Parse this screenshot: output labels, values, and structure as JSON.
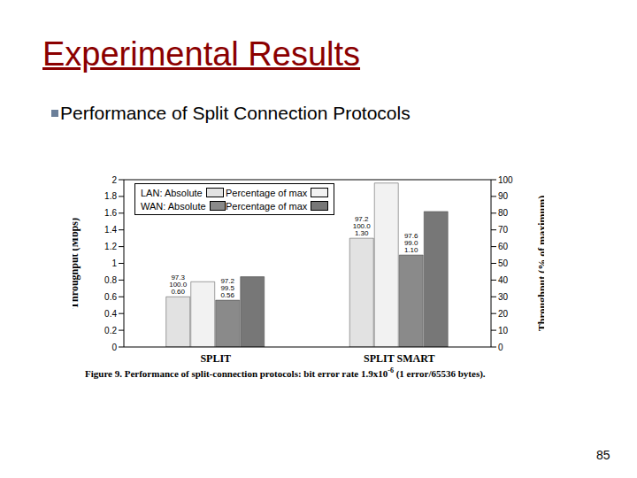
{
  "slide": {
    "title": "Experimental Results",
    "bullet": "Performance of Split Connection Protocols",
    "page_number": "85",
    "caption": {
      "text": "Figure 9. Performance of split-connection protocols: bit error rate",
      "value": "1.9x10",
      "exponent": "-6",
      "end": "(1 error/65536 bytes)."
    }
  },
  "chart_data": {
    "type": "bar",
    "categories": [
      "SPLIT",
      "SPLIT SMART"
    ],
    "y_label": "Throughput (Mbps)",
    "y2_label": "Throughput (% of maximum)",
    "ylim": [
      0,
      2
    ],
    "yticks": [
      0,
      0.2,
      0.4,
      0.6,
      0.8,
      1,
      1.2,
      1.4,
      1.6,
      1.8,
      2
    ],
    "y2lim": [
      0,
      100
    ],
    "y2ticks": [
      0,
      10,
      20,
      30,
      40,
      50,
      60,
      70,
      80,
      90,
      100
    ],
    "legend": "upper left",
    "grid": false,
    "series": [
      {
        "name": "LAN: Absolute",
        "color": "#e2e2e2",
        "values": [
          0.6,
          1.3
        ],
        "annotations": [
          [
            "97.3",
            "100.0",
            "0.60"
          ],
          [
            "97.2",
            "100.0",
            "1.30"
          ]
        ]
      },
      {
        "name": "Percentage of max",
        "color": "#f2f2f2",
        "values": [
          39,
          98
        ],
        "axis": "y2"
      },
      {
        "name": "WAN: Absolute",
        "color": "#8a8a8a",
        "values": [
          0.56,
          1.1
        ],
        "annotations": [
          [
            "97.2",
            "99.5",
            "0.56"
          ],
          [
            "97.6",
            "99.0",
            "1.10"
          ]
        ]
      },
      {
        "name": "Percentage of max",
        "color": "#777777",
        "values": [
          42,
          81
        ],
        "axis": "y2"
      }
    ]
  }
}
